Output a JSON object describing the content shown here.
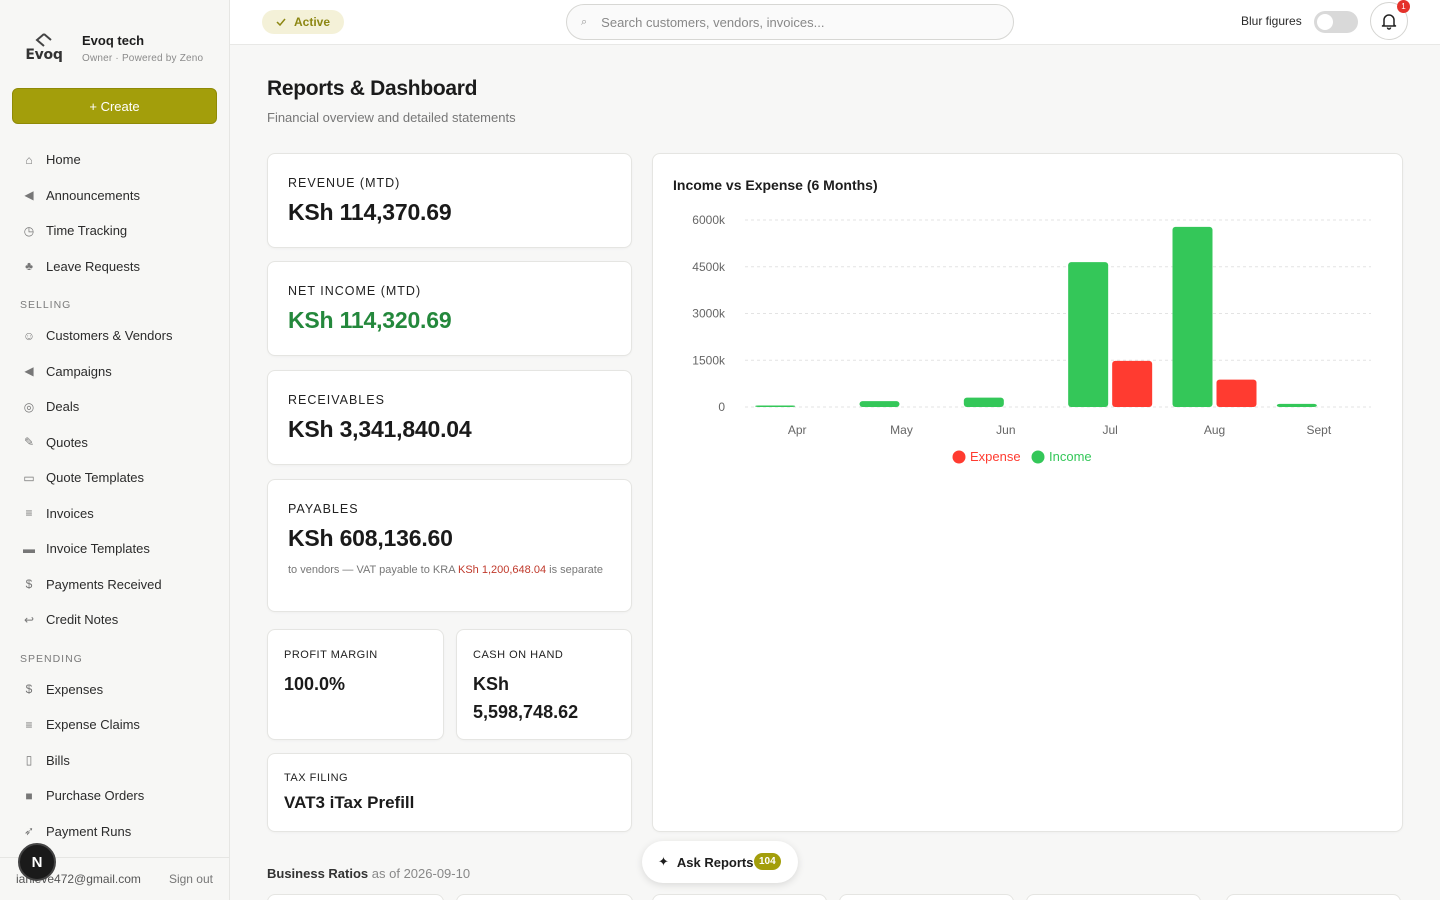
{
  "brand": {
    "logo_text": "Evoq",
    "name": "Evoq tech",
    "subtitle": "Owner · Powered by Zeno"
  },
  "sidebar": {
    "create_label": "+ Create",
    "items_top": [
      {
        "label": "Home",
        "icon": "home-icon"
      },
      {
        "label": "Announcements",
        "icon": "megaphone-icon"
      },
      {
        "label": "Time Tracking",
        "icon": "stopwatch-icon"
      },
      {
        "label": "Leave Requests",
        "icon": "palm-tree-icon"
      }
    ],
    "section_selling": "SELLING",
    "items_selling": [
      {
        "label": "Customers & Vendors",
        "icon": "people-icon"
      },
      {
        "label": "Campaigns",
        "icon": "megaphone-icon"
      },
      {
        "label": "Deals",
        "icon": "target-icon"
      },
      {
        "label": "Quotes",
        "icon": "memo-icon"
      },
      {
        "label": "Quote Templates",
        "icon": "document-icon"
      },
      {
        "label": "Invoices",
        "icon": "receipt-icon"
      },
      {
        "label": "Invoice Templates",
        "icon": "folder-icon"
      },
      {
        "label": "Payments Received",
        "icon": "money-bag-icon"
      },
      {
        "label": "Credit Notes",
        "icon": "return-icon"
      }
    ],
    "section_spending": "SPENDING",
    "items_spending": [
      {
        "label": "Expenses",
        "icon": "money-wings-icon"
      },
      {
        "label": "Expense Claims",
        "icon": "receipt-icon"
      },
      {
        "label": "Bills",
        "icon": "page-icon"
      },
      {
        "label": "Purchase Orders",
        "icon": "package-icon"
      },
      {
        "label": "Payment Runs",
        "icon": "runner-icon"
      }
    ],
    "user_email": "ianleve472@gmail.com",
    "sign_out": "Sign out",
    "avatar_letter": "N"
  },
  "topbar": {
    "status": "Active",
    "search_placeholder": "Search customers, vendors, invoices...",
    "blur_label": "Blur figures",
    "blur_enabled": false,
    "notification_count": "1"
  },
  "page": {
    "title": "Reports & Dashboard",
    "subtitle": "Financial overview and detailed statements"
  },
  "kpis": {
    "revenue_label": "REVENUE (MTD)",
    "revenue_value": "KSh 114,370.69",
    "net_income_label": "NET INCOME (MTD)",
    "net_income_value": "KSh 114,320.69",
    "receivables_label": "RECEIVABLES",
    "receivables_value": "KSh 3,341,840.04",
    "payables_label": "PAYABLES",
    "payables_value": "KSh 608,136.60",
    "payables_note_pre": "to vendors — VAT payable to KRA",
    "payables_note_amount": "KSh 1,200,648.04",
    "payables_note_post": "is separate",
    "profit_margin_label": "PROFIT MARGIN",
    "profit_margin_value": "100.0%",
    "cash_label": "CASH ON HAND",
    "cash_value_line1": "KSh",
    "cash_value_line2": "5,598,748.62",
    "tax_label": "TAX FILING",
    "tax_value": "VAT3 iTax Prefill"
  },
  "chart_data": {
    "type": "bar",
    "title": "Income vs Expense (6 Months)",
    "categories": [
      "Apr",
      "May",
      "Jun",
      "Jul",
      "Aug",
      "Sept"
    ],
    "series": [
      {
        "name": "Income",
        "color": "#34c759",
        "values": [
          50,
          190,
          300,
          4650,
          5780,
          100
        ]
      },
      {
        "name": "Expense",
        "color": "#ff3b30",
        "values": [
          0,
          0,
          0,
          1480,
          880,
          0
        ]
      }
    ],
    "ylim": [
      0,
      6000
    ],
    "y_ticks": [
      "0",
      "1500k",
      "3000k",
      "4500k",
      "6000k"
    ],
    "legend": "bottom",
    "grid": true
  },
  "footer": {
    "ratios_label": "Business Ratios",
    "ratios_asof": "as of 2026-09-10",
    "ask_label": "Ask Reports",
    "ask_count": "104"
  }
}
